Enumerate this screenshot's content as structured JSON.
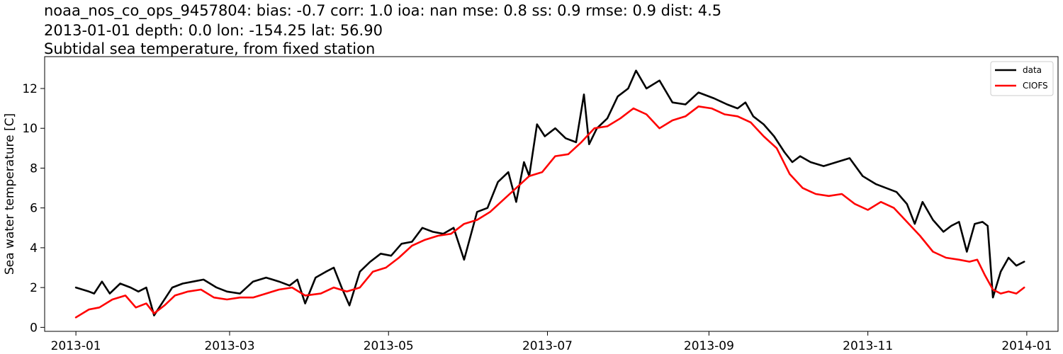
{
  "chart_data": {
    "type": "line",
    "title_lines": [
      "noaa_nos_co_ops_9457804: bias: -0.7  corr: 1.0  ioa: nan  mse: 0.8  ss: 0.9  rmse: 0.9  dist: 4.5",
      "2013-01-01 depth: 0.0 lon: -154.25 lat: 56.90",
      "Subtidal sea temperature, from fixed station"
    ],
    "xlabel": "",
    "ylabel": "Sea water temperature [C]",
    "xlim": [
      "2012-12-20",
      "2014-01-13"
    ],
    "ylim": [
      -0.2,
      13.6
    ],
    "x_ticks": [
      "2013-01",
      "2013-03",
      "2013-05",
      "2013-07",
      "2013-09",
      "2013-11",
      "2014-01"
    ],
    "y_ticks": [
      0,
      2,
      4,
      6,
      8,
      10,
      12
    ],
    "grid": false,
    "legend_position": "top-right",
    "series": [
      {
        "name": "data",
        "color": "#000000",
        "x": [
          "2013-01-01",
          "2013-01-06",
          "2013-01-08",
          "2013-01-11",
          "2013-01-14",
          "2013-01-18",
          "2013-01-22",
          "2013-01-25",
          "2013-01-28",
          "2013-01-31",
          "2013-02-03",
          "2013-02-07",
          "2013-02-11",
          "2013-02-15",
          "2013-02-19",
          "2013-02-24",
          "2013-02-28",
          "2013-03-05",
          "2013-03-10",
          "2013-03-15",
          "2013-03-20",
          "2013-03-24",
          "2013-03-27",
          "2013-03-30",
          "2013-04-03",
          "2013-04-07",
          "2013-04-10",
          "2013-04-13",
          "2013-04-16",
          "2013-04-20",
          "2013-04-24",
          "2013-04-28",
          "2013-05-02",
          "2013-05-06",
          "2013-05-10",
          "2013-05-14",
          "2013-05-18",
          "2013-05-22",
          "2013-05-26",
          "2013-05-30",
          "2013-06-04",
          "2013-06-08",
          "2013-06-12",
          "2013-06-16",
          "2013-06-19",
          "2013-06-22",
          "2013-06-24",
          "2013-06-27",
          "2013-06-30",
          "2013-07-04",
          "2013-07-08",
          "2013-07-12",
          "2013-07-15",
          "2013-07-17",
          "2013-07-20",
          "2013-07-24",
          "2013-07-28",
          "2013-08-01",
          "2013-08-04",
          "2013-08-08",
          "2013-08-13",
          "2013-08-18",
          "2013-08-23",
          "2013-08-28",
          "2013-09-03",
          "2013-09-08",
          "2013-09-12",
          "2013-09-15",
          "2013-09-18",
          "2013-09-22",
          "2013-09-26",
          "2013-09-30",
          "2013-10-03",
          "2013-10-06",
          "2013-10-10",
          "2013-10-15",
          "2013-10-20",
          "2013-10-25",
          "2013-10-30",
          "2013-11-04",
          "2013-11-08",
          "2013-11-12",
          "2013-11-16",
          "2013-11-19",
          "2013-11-22",
          "2013-11-26",
          "2013-11-30",
          "2013-12-03",
          "2013-12-06",
          "2013-12-09",
          "2013-12-12",
          "2013-12-15",
          "2013-12-17",
          "2013-12-19",
          "2013-12-22",
          "2013-12-25",
          "2013-12-28",
          "2013-12-31"
        ],
        "y": [
          2.0,
          1.8,
          1.7,
          2.3,
          1.7,
          2.2,
          2.0,
          1.8,
          2.0,
          0.6,
          1.2,
          2.0,
          2.2,
          2.3,
          2.4,
          2.0,
          1.8,
          1.7,
          2.3,
          2.5,
          2.3,
          2.1,
          2.4,
          1.2,
          2.5,
          2.8,
          3.0,
          2.0,
          1.1,
          2.8,
          3.3,
          3.7,
          3.6,
          4.2,
          4.3,
          5.0,
          4.8,
          4.7,
          5.0,
          3.4,
          5.8,
          6.0,
          7.3,
          7.8,
          6.3,
          8.3,
          7.6,
          10.2,
          9.6,
          10.0,
          9.5,
          9.3,
          11.7,
          9.2,
          10.0,
          10.5,
          11.6,
          12.0,
          12.9,
          12.0,
          12.4,
          11.3,
          11.2,
          11.8,
          11.5,
          11.2,
          11.0,
          11.3,
          10.6,
          10.2,
          9.6,
          8.8,
          8.3,
          8.6,
          8.3,
          8.1,
          8.3,
          8.5,
          7.6,
          7.2,
          7.0,
          6.8,
          6.2,
          5.2,
          6.3,
          5.4,
          4.8,
          5.1,
          5.3,
          3.8,
          5.2,
          5.3,
          5.1,
          1.5,
          2.8,
          3.5,
          3.1,
          3.3
        ]
      },
      {
        "name": "CIOFS",
        "color": "#ff0000",
        "x": [
          "2013-01-01",
          "2013-01-06",
          "2013-01-10",
          "2013-01-15",
          "2013-01-20",
          "2013-01-24",
          "2013-01-28",
          "2013-01-31",
          "2013-02-04",
          "2013-02-08",
          "2013-02-13",
          "2013-02-18",
          "2013-02-23",
          "2013-02-28",
          "2013-03-05",
          "2013-03-10",
          "2013-03-15",
          "2013-03-20",
          "2013-03-25",
          "2013-03-30",
          "2013-04-05",
          "2013-04-10",
          "2013-04-15",
          "2013-04-20",
          "2013-04-25",
          "2013-04-30",
          "2013-05-05",
          "2013-05-10",
          "2013-05-15",
          "2013-05-20",
          "2013-05-25",
          "2013-05-30",
          "2013-06-04",
          "2013-06-09",
          "2013-06-14",
          "2013-06-19",
          "2013-06-24",
          "2013-06-29",
          "2013-07-04",
          "2013-07-09",
          "2013-07-14",
          "2013-07-19",
          "2013-07-24",
          "2013-07-29",
          "2013-08-03",
          "2013-08-08",
          "2013-08-13",
          "2013-08-18",
          "2013-08-23",
          "2013-08-28",
          "2013-09-02",
          "2013-09-07",
          "2013-09-12",
          "2013-09-17",
          "2013-09-22",
          "2013-09-27",
          "2013-10-02",
          "2013-10-07",
          "2013-10-12",
          "2013-10-17",
          "2013-10-22",
          "2013-10-27",
          "2013-11-01",
          "2013-11-06",
          "2013-11-11",
          "2013-11-16",
          "2013-11-21",
          "2013-11-26",
          "2013-12-01",
          "2013-12-06",
          "2013-12-10",
          "2013-12-13",
          "2013-12-16",
          "2013-12-19",
          "2013-12-22",
          "2013-12-25",
          "2013-12-28",
          "2013-12-31"
        ],
        "y": [
          0.5,
          0.9,
          1.0,
          1.4,
          1.6,
          1.0,
          1.2,
          0.7,
          1.1,
          1.6,
          1.8,
          1.9,
          1.5,
          1.4,
          1.5,
          1.5,
          1.7,
          1.9,
          2.0,
          1.6,
          1.7,
          2.0,
          1.8,
          2.0,
          2.8,
          3.0,
          3.5,
          4.1,
          4.4,
          4.6,
          4.7,
          5.2,
          5.4,
          5.8,
          6.4,
          7.0,
          7.6,
          7.8,
          8.6,
          8.7,
          9.3,
          10.0,
          10.1,
          10.5,
          11.0,
          10.7,
          10.0,
          10.4,
          10.6,
          11.1,
          11.0,
          10.7,
          10.6,
          10.3,
          9.6,
          9.0,
          7.7,
          7.0,
          6.7,
          6.6,
          6.7,
          6.2,
          5.9,
          6.3,
          6.0,
          5.3,
          4.6,
          3.8,
          3.5,
          3.4,
          3.3,
          3.4,
          2.6,
          1.9,
          1.7,
          1.8,
          1.7,
          2.0
        ]
      }
    ]
  }
}
